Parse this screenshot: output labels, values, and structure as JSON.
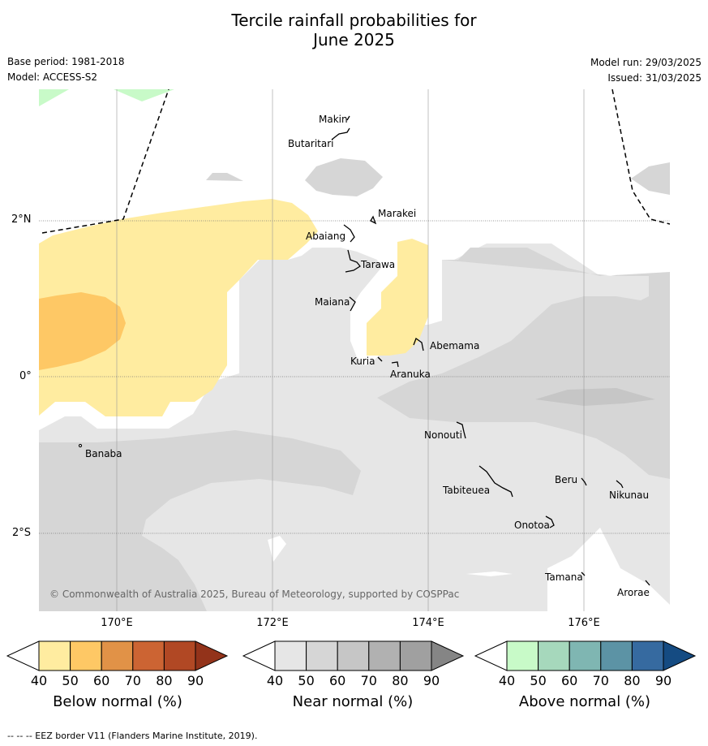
{
  "title": {
    "line1": "Tercile rainfall probabilities for",
    "line2": "June 2025"
  },
  "meta": {
    "base_period": "Base period: 1981-2018",
    "model": "Model: ACCESS-S2",
    "model_run": "Model run: 29/03/2025",
    "issued": "Issued: 31/03/2025"
  },
  "map": {
    "lat_labels": [
      "2°N",
      "0°",
      "2°S"
    ],
    "lon_labels": [
      "170°E",
      "172°E",
      "174°E",
      "176°E"
    ],
    "islands": [
      "Makin",
      "Butaritari",
      "Marakei",
      "Abaiang",
      "Tarawa",
      "Maiana",
      "Abemama",
      "Kuria",
      "Aranuka",
      "Banaba",
      "Nonouti",
      "Tabiteuea",
      "Beru",
      "Nikunau",
      "Onotoa",
      "Tamana",
      "Arorae"
    ],
    "copyright": "© Commonwealth of Australia 2025, Bureau of Meteorology, supported by COSPPac"
  },
  "colorbars": [
    {
      "name": "Below normal (%)",
      "ticks": [
        "40",
        "50",
        "60",
        "70",
        "80",
        "90"
      ],
      "colors": [
        "#ffeca0",
        "#fec865",
        "#e19247",
        "#cc6433",
        "#b14824",
        "#93331a"
      ]
    },
    {
      "name": "Near normal (%)",
      "ticks": [
        "40",
        "50",
        "60",
        "70",
        "80",
        "90"
      ],
      "colors": [
        "#e6e6e6",
        "#d6d6d6",
        "#c6c6c6",
        "#b1b1b1",
        "#a0a0a0",
        "#858585"
      ]
    },
    {
      "name": "Above normal (%)",
      "ticks": [
        "40",
        "50",
        "60",
        "70",
        "80",
        "90"
      ],
      "colors": [
        "#c8fac8",
        "#a6d8bc",
        "#7fb6b2",
        "#5c93a5",
        "#366aa0",
        "#154b82"
      ]
    }
  ],
  "footer": "--  --  -- EEZ border V11 (Flanders Marine Institute, 2019)."
}
